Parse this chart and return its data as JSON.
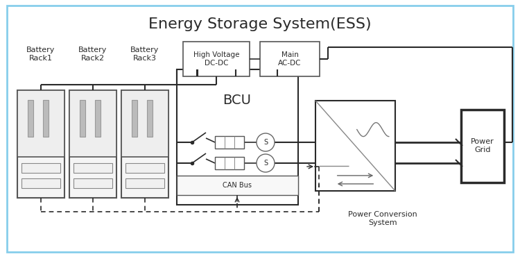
{
  "title": "Energy Storage System(ESS)",
  "bg_color": "#ffffff",
  "border_color": "#87CEEB",
  "dk": "#2a2a2a",
  "gray": "#888888",
  "lgray": "#cccccc",
  "rack_labels": [
    "Battery\nRack1",
    "Battery\nRack2",
    "Battery\nRack3"
  ],
  "bcu_label": "BCU",
  "hv_label": "High Voltage\nDC-DC",
  "main_label": "Main\nAC-DC",
  "pcs_label": "Power Conversion\nSystem",
  "grid_label": "Power\nGrid",
  "can_label": "CAN Bus",
  "s_label": "S"
}
